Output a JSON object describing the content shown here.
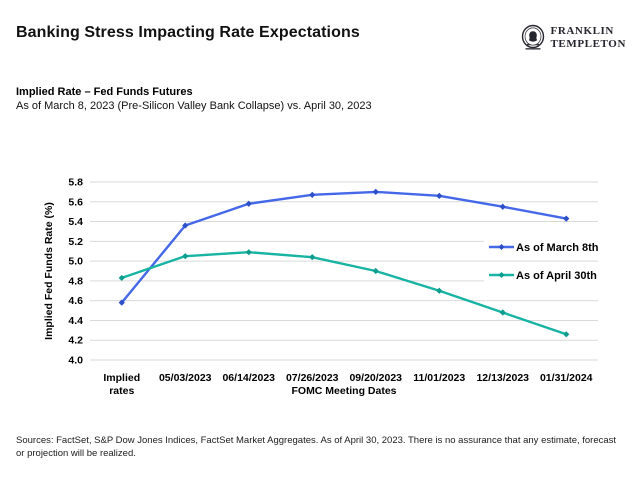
{
  "header": {
    "title": "Banking Stress Impacting Rate Expectations",
    "logo": {
      "line1": "FRANKLIN",
      "line2": "TEMPLETON",
      "icon": "franklin-head-icon"
    }
  },
  "chart_header": {
    "title": "Implied Rate – Fed Funds Futures",
    "subtitle": "As of March 8, 2023 (Pre-Silicon Valley Bank Collapse) vs. April 30, 2023"
  },
  "chart_data": {
    "type": "line",
    "categories": [
      "Implied rates",
      "05/03/2023",
      "06/14/2023",
      "07/26/2023",
      "09/20/2023",
      "11/01/2023",
      "12/13/2023",
      "01/31/2024"
    ],
    "tick_labels": [
      [
        "Implied",
        "rates"
      ],
      [
        "05/03/2023"
      ],
      [
        "06/14/2023"
      ],
      [
        "07/26/2023"
      ],
      [
        "09/20/2023"
      ],
      [
        "11/01/2023"
      ],
      [
        "12/13/2023"
      ],
      [
        "01/31/2024"
      ]
    ],
    "series": [
      {
        "name": "As of March 8th",
        "color": "#4468E8",
        "marker_color": "#2D4FC8",
        "values": [
          4.58,
          5.36,
          5.58,
          5.67,
          5.7,
          5.66,
          5.55,
          5.43
        ]
      },
      {
        "name": "As of April 30th",
        "color": "#17B3A3",
        "marker_color": "#0E9C8E",
        "values": [
          4.83,
          5.05,
          5.09,
          5.04,
          4.9,
          4.7,
          4.48,
          4.26
        ]
      }
    ],
    "xlabel": "FOMC Meeting Dates",
    "ylabel": "Implied Fed Funds Rate (%)",
    "ylim": [
      4.0,
      5.8
    ],
    "ytick_step": 0.2,
    "grid": true,
    "gridline_color": "#D9D9D9",
    "legend_position": "right-inside"
  },
  "footer": {
    "text": "Sources: FactSet, S&P Dow Jones Indices, FactSet Market Aggregates. As of April 30, 2023. There is no assurance that any estimate, forecast or projection will be realized."
  }
}
